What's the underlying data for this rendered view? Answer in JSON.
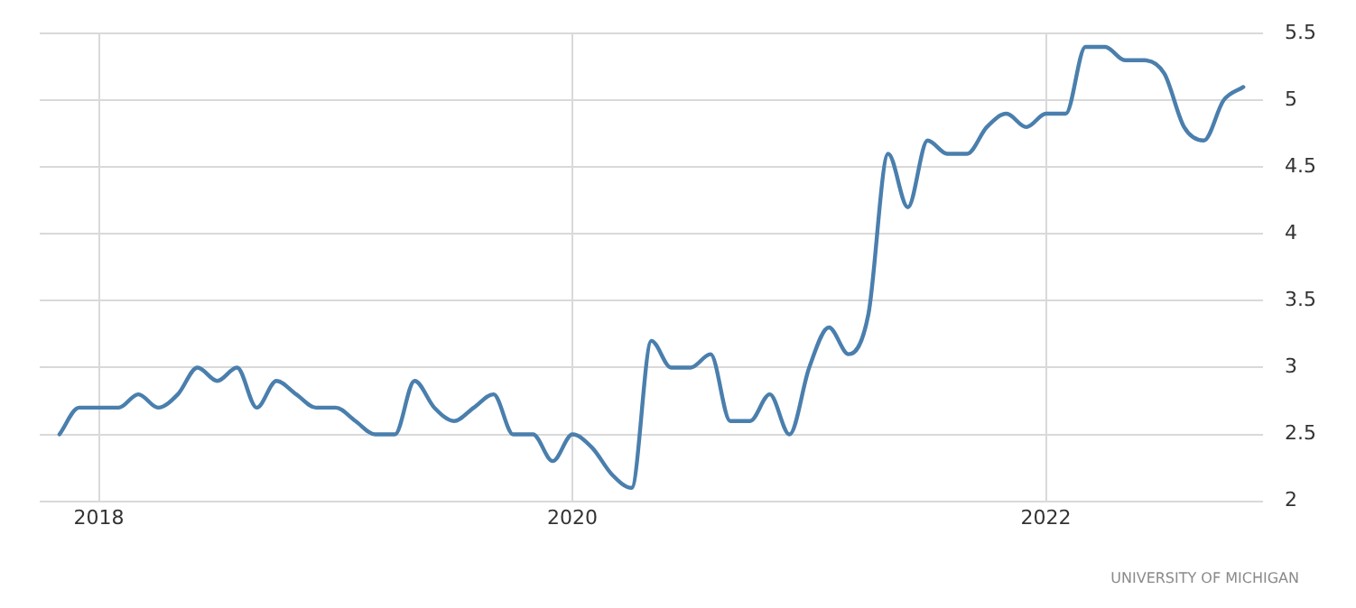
{
  "chart_data": {
    "type": "line",
    "x": [
      "2017-11",
      "2017-12",
      "2018-01",
      "2018-02",
      "2018-03",
      "2018-04",
      "2018-05",
      "2018-06",
      "2018-07",
      "2018-08",
      "2018-09",
      "2018-10",
      "2018-11",
      "2018-12",
      "2019-01",
      "2019-02",
      "2019-03",
      "2019-04",
      "2019-05",
      "2019-06",
      "2019-07",
      "2019-08",
      "2019-09",
      "2019-10",
      "2019-11",
      "2019-12",
      "2020-01",
      "2020-02",
      "2020-03",
      "2020-04",
      "2020-05",
      "2020-06",
      "2020-07",
      "2020-08",
      "2020-09",
      "2020-10",
      "2020-11",
      "2020-12",
      "2021-01",
      "2021-02",
      "2021-03",
      "2021-04",
      "2021-05",
      "2021-06",
      "2021-07",
      "2021-08",
      "2021-09",
      "2021-10",
      "2021-11",
      "2021-12",
      "2022-01",
      "2022-02",
      "2022-03",
      "2022-04",
      "2022-05",
      "2022-06",
      "2022-07",
      "2022-08",
      "2022-09",
      "2022-10",
      "2022-11"
    ],
    "series": [
      {
        "color": "#4a7fad",
        "values": [
          2.5,
          2.7,
          2.7,
          2.7,
          2.8,
          2.7,
          2.8,
          3.0,
          2.9,
          3.0,
          2.7,
          2.9,
          2.8,
          2.7,
          2.7,
          2.6,
          2.5,
          2.5,
          2.9,
          2.7,
          2.6,
          2.7,
          2.8,
          2.5,
          2.5,
          2.3,
          2.5,
          2.4,
          2.2,
          2.1,
          3.2,
          3.0,
          3.0,
          3.1,
          2.6,
          2.6,
          2.8,
          2.5,
          3.0,
          3.3,
          3.1,
          3.4,
          4.6,
          4.2,
          4.7,
          4.6,
          4.6,
          4.8,
          4.9,
          4.8,
          4.9,
          4.9,
          5.4,
          5.4,
          5.3,
          5.3,
          5.2,
          4.8,
          4.7,
          5.0,
          5.1
        ]
      }
    ],
    "xlim": [
      "2017-10",
      "2022-12"
    ],
    "xticks": [
      "2018",
      "2020",
      "2022"
    ],
    "ylim": [
      2,
      5.5
    ],
    "yticks": [
      2,
      2.5,
      3,
      3.5,
      4,
      4.5,
      5,
      5.5
    ],
    "grid": true,
    "legend": false,
    "marker": "none",
    "line_style": "solid",
    "annotations": [
      "UNIVERSITY OF MICHIGAN"
    ]
  }
}
